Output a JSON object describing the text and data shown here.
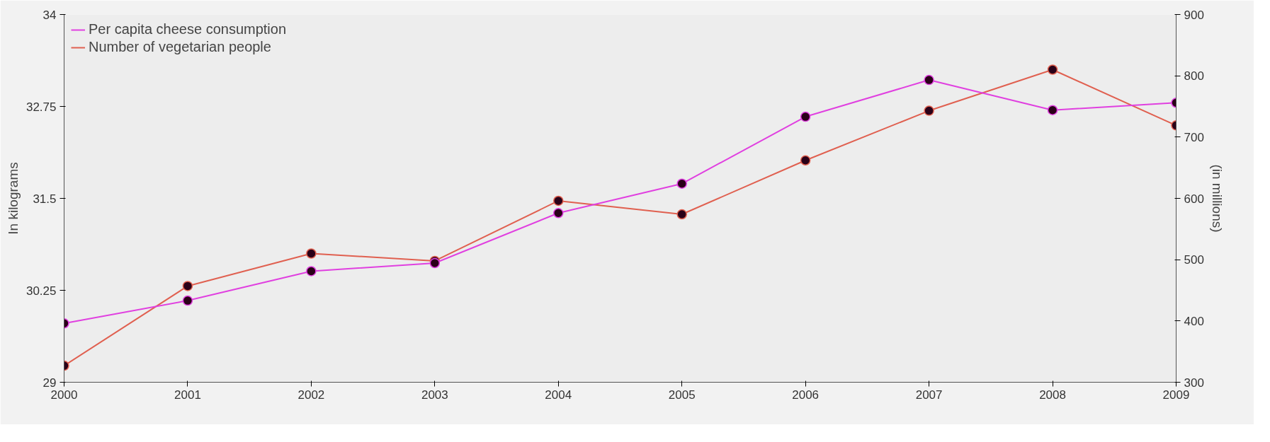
{
  "chart_data": {
    "type": "line",
    "ylabel": "In kilograms",
    "y2label": "(in millions)",
    "x": [
      2000,
      2001,
      2002,
      2003,
      2004,
      2005,
      2006,
      2007,
      2008,
      2009
    ],
    "xlim": [
      2000,
      2009
    ],
    "xticks": [
      2000,
      2001,
      2002,
      2003,
      2004,
      2005,
      2006,
      2007,
      2008,
      2009
    ],
    "ylim": [
      29,
      34
    ],
    "yticks": [
      29,
      30.25,
      31.5,
      32.75,
      34
    ],
    "y2lim": [
      300,
      900
    ],
    "y2ticks": [
      300,
      400,
      500,
      600,
      700,
      800,
      900
    ],
    "marker": "circle",
    "line_style": "solid",
    "grid": false,
    "legend": "top left",
    "series": [
      {
        "name": "Per capita cheese consumption",
        "color": "#e040e0",
        "values": [
          29.8,
          30.11,
          30.51,
          30.62,
          31.3,
          31.7,
          32.61,
          33.11,
          32.7,
          32.8
        ]
      },
      {
        "name": "Number of vegetarian people",
        "color": "#e06050",
        "axis": "y2",
        "values": [
          327,
          457,
          510,
          498,
          596,
          574,
          662,
          743,
          810,
          719
        ]
      }
    ]
  }
}
